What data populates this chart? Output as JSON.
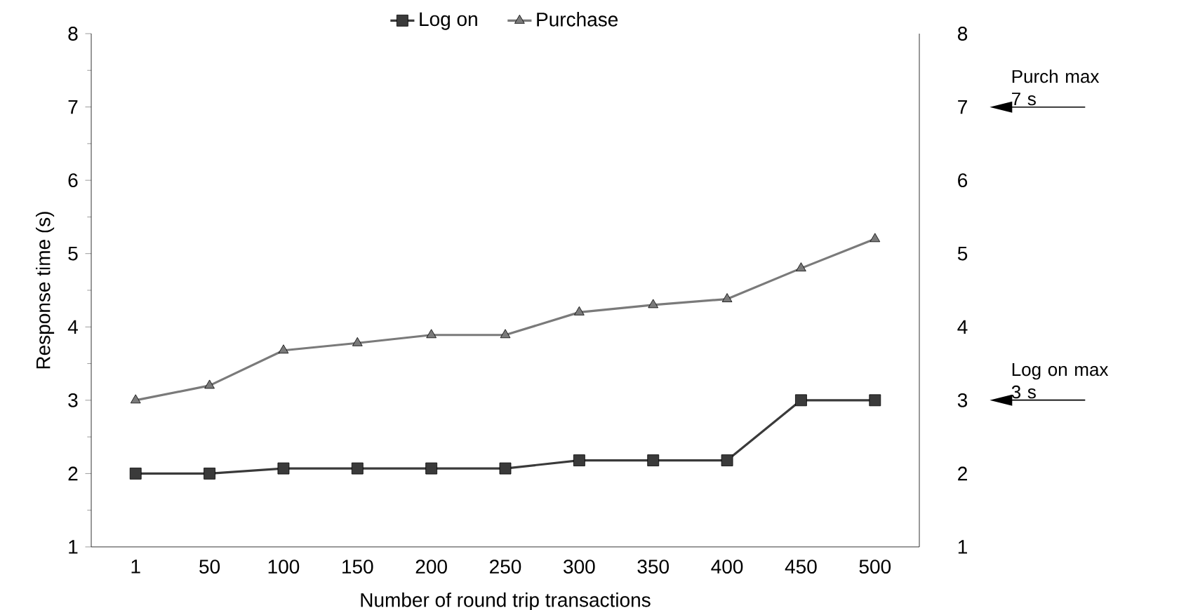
{
  "chart_data": {
    "type": "line",
    "xlabel": "Number of round trip transactions",
    "ylabel": "Response time (s)",
    "categories": [
      "1",
      "50",
      "100",
      "150",
      "200",
      "250",
      "300",
      "350",
      "400",
      "450",
      "500"
    ],
    "series": [
      {
        "name": "Log on",
        "color": "#3a3a3a",
        "marker": "square",
        "values": [
          2,
          2,
          2.07,
          2.07,
          2.07,
          2.07,
          2.18,
          2.18,
          2.18,
          3,
          3
        ]
      },
      {
        "name": "Purchase",
        "color": "#7a7a7a",
        "marker": "triangle",
        "values": [
          3,
          3.2,
          3.68,
          3.78,
          3.89,
          3.89,
          4.2,
          4.3,
          4.38,
          4.8,
          5.2
        ]
      }
    ],
    "ylim": [
      1,
      8
    ],
    "yticks": [
      1,
      2,
      3,
      4,
      5,
      6,
      7,
      8
    ],
    "y2lim": [
      1,
      8
    ],
    "y2ticks": [
      1,
      2,
      3,
      4,
      5,
      6,
      7,
      8
    ],
    "legend": "top",
    "grid": false,
    "annotations": [
      "Purch max 7 s",
      "Log on max 3 s"
    ]
  }
}
